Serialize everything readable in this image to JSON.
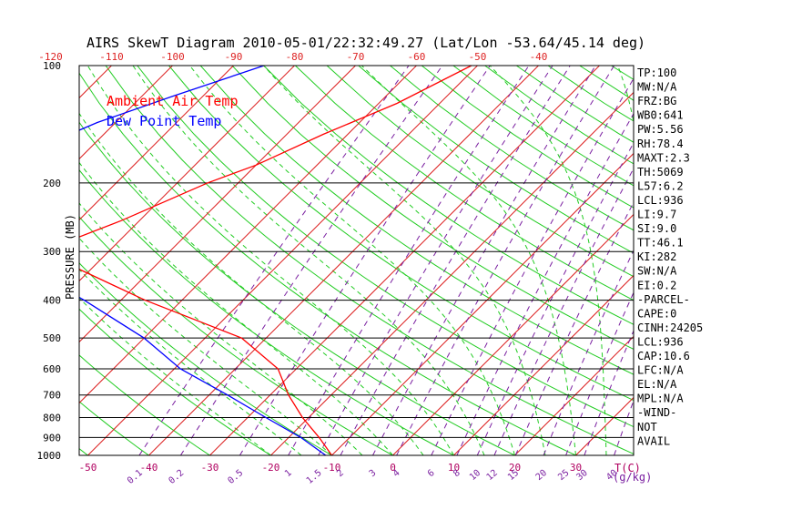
{
  "chart_data": {
    "type": "line",
    "title": "AIRS SkewT Diagram 2010-05-01/22:32:49.27 (Lat/Lon -53.64/45.14 deg)",
    "ylabel": "PRESSURE (MB)",
    "xlabel_temp": "T(C)",
    "xlabel_mix": "(g/kg)",
    "pressure_ticks": [
      100,
      200,
      300,
      400,
      500,
      600,
      700,
      800,
      900,
      1000
    ],
    "pressure_lines": [
      200,
      300,
      400,
      500,
      600,
      700,
      800,
      900
    ],
    "bottom_temp_ticks": [
      "-50",
      "-40",
      "-30",
      "-20",
      "-10",
      "0",
      "10",
      "20",
      "30"
    ],
    "top_temp_ticks": [
      "-120",
      "-110",
      "-100",
      "-90",
      "-80",
      "-70",
      "-60",
      "-50",
      "-40"
    ],
    "mixing_ratio_ticks": [
      "0.1",
      "0.2",
      "0.5",
      "1",
      "1.5",
      "2",
      "3",
      "4",
      "6",
      "8",
      "10",
      "12",
      "15",
      "20",
      "25",
      "30",
      "40"
    ],
    "legend": [
      {
        "name": "Ambient Air Temp",
        "color": "#ff0000"
      },
      {
        "name": "Dew Point Temp",
        "color": "#0000ff"
      }
    ],
    "series": [
      {
        "name": "Ambient Air Temp",
        "color": "#ff0000",
        "points": [
          {
            "p": 100,
            "t": -51
          },
          {
            "p": 125,
            "t": -57
          },
          {
            "p": 150,
            "t": -64
          },
          {
            "p": 180,
            "t": -70
          },
          {
            "p": 200,
            "t": -75
          },
          {
            "p": 250,
            "t": -83
          },
          {
            "p": 300,
            "t": -91
          },
          {
            "p": 400,
            "t": -66
          },
          {
            "p": 500,
            "t": -44
          },
          {
            "p": 600,
            "t": -33
          },
          {
            "p": 700,
            "t": -27
          },
          {
            "p": 800,
            "t": -21
          },
          {
            "p": 900,
            "t": -15
          },
          {
            "p": 1000,
            "t": -10
          }
        ]
      },
      {
        "name": "Dew Point Temp",
        "color": "#0000ff",
        "points": [
          {
            "p": 100,
            "t": -85
          },
          {
            "p": 120,
            "t": -95
          },
          {
            "p": 140,
            "t": -103
          },
          {
            "p": 160,
            "t": -108
          },
          {
            "p": 180,
            "t": -112
          },
          {
            "p": 200,
            "t": -117
          },
          {
            "p": 250,
            "t": -114
          },
          {
            "p": 300,
            "t": -98
          },
          {
            "p": 400,
            "t": -76
          },
          {
            "p": 500,
            "t": -60
          },
          {
            "p": 600,
            "t": -49
          },
          {
            "p": 700,
            "t": -37
          },
          {
            "p": 800,
            "t": -27
          },
          {
            "p": 900,
            "t": -18
          },
          {
            "p": 1000,
            "t": -11
          }
        ]
      }
    ],
    "side_panel": [
      "TP:100",
      "MW:N/A",
      "FRZ:BG",
      "WB0:641",
      "PW:5.56",
      "RH:78.4",
      "MAXT:2.3",
      "TH:5069",
      "L57:6.2",
      "LCL:936",
      "LI:9.7",
      "SI:9.0",
      "TT:46.1",
      "KI:282",
      "SW:N/A",
      "EI:0.2",
      "-PARCEL-",
      "CAPE:0",
      "CINH:24205",
      "LCL:936",
      "CAP:10.6",
      "LFC:N/A",
      "EL:N/A",
      "MPL:N/A",
      "-WIND-",
      "NOT",
      "AVAIL"
    ]
  }
}
